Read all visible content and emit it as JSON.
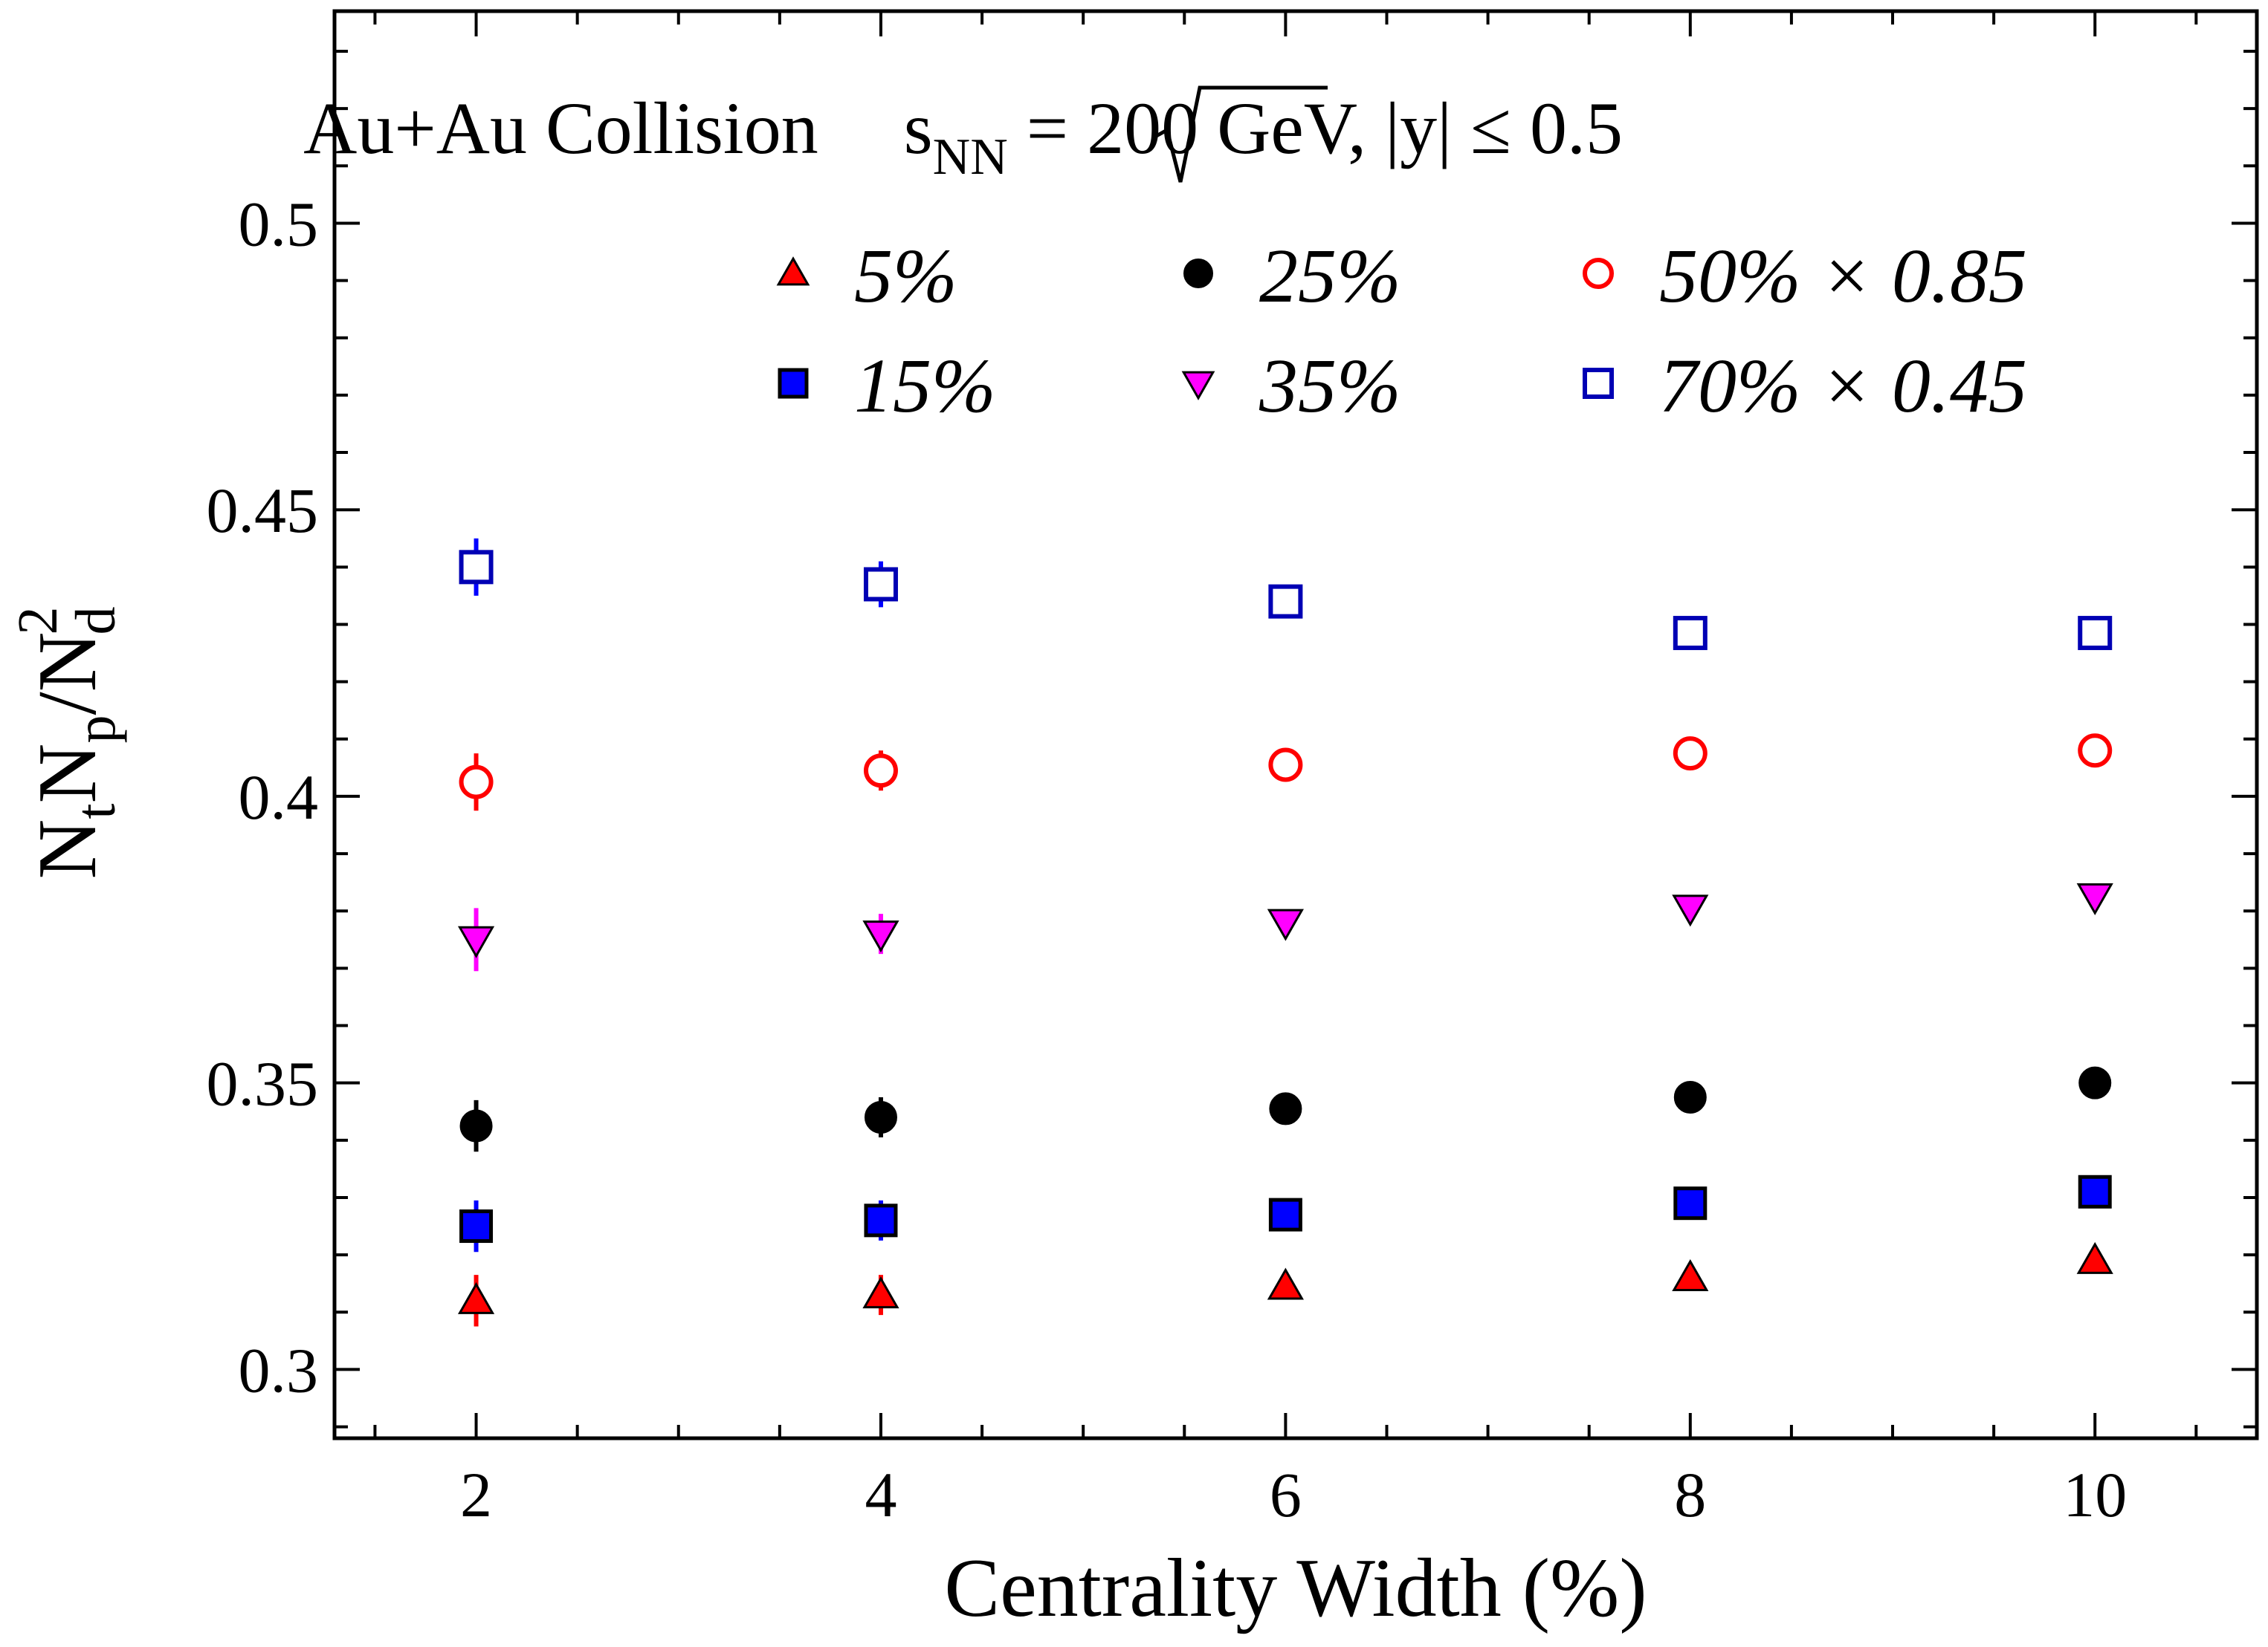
{
  "chart_data": {
    "type": "scatter",
    "title": {
      "prefix": "Au+Au Collision ",
      "sqrt_s": "s",
      "sqrt_sub": "NN",
      "suffix": " = 200 GeV, |y| ≤ 0.5"
    },
    "xlabel": "Centrality Width (%)",
    "ylabel": {
      "n1": "N",
      "s1": "t",
      "n2": "N",
      "s2": "p",
      "div": "/N",
      "sup": "2",
      "s3": "d"
    },
    "xlim": [
      1.3,
      10.8
    ],
    "ylim": [
      0.288,
      0.537
    ],
    "xticks": [
      2,
      4,
      6,
      8,
      10
    ],
    "xtick_labels": [
      "2",
      "4",
      "6",
      "8",
      "10"
    ],
    "yticks": [
      0.3,
      0.35,
      0.4,
      0.45,
      0.5
    ],
    "ytick_labels": [
      "0.3",
      "0.35",
      "0.4",
      "0.45",
      "0.5"
    ],
    "legend_position": "top",
    "x": [
      2,
      4,
      6,
      8,
      10
    ],
    "series": [
      {
        "name": "5%",
        "marker": "triangle-up",
        "color": "#ff0000",
        "filled": true,
        "values": [
          0.312,
          0.313,
          0.3145,
          0.316,
          0.319
        ],
        "errors": [
          0.0045,
          0.0035,
          0.002,
          0.0015,
          0.0015
        ]
      },
      {
        "name": "15%",
        "marker": "square",
        "color": "#0000ff",
        "filled": true,
        "values": [
          0.325,
          0.326,
          0.327,
          0.329,
          0.331
        ],
        "errors": [
          0.0045,
          0.0035,
          0.002,
          0.0015,
          0.0015
        ]
      },
      {
        "name": "25%",
        "marker": "circle",
        "color": "#000000",
        "filled": true,
        "values": [
          0.3425,
          0.344,
          0.3455,
          0.3475,
          0.35
        ],
        "errors": [
          0.0045,
          0.0035,
          0.002,
          0.0015,
          0.0015
        ]
      },
      {
        "name": "35%",
        "marker": "triangle-down",
        "color": "#ff00ff",
        "filled": true,
        "values": [
          0.375,
          0.376,
          0.378,
          0.3805,
          0.3825
        ],
        "errors": [
          0.0055,
          0.0035,
          0.002,
          0.0015,
          0.0015
        ]
      },
      {
        "name": "50% × 0.85",
        "marker": "circle",
        "color": "#ff0000",
        "filled": false,
        "values": [
          0.4025,
          0.4045,
          0.4055,
          0.4075,
          0.408
        ],
        "errors": [
          0.005,
          0.0035,
          0.002,
          0.0015,
          0.0015
        ]
      },
      {
        "name": "70% × 0.45",
        "marker": "square",
        "color": "#0000ff",
        "filled": false,
        "values": [
          0.44,
          0.437,
          0.434,
          0.4285,
          0.4285
        ],
        "errors": [
          0.005,
          0.004,
          0.0025,
          0.0015,
          0.0015
        ]
      }
    ]
  }
}
